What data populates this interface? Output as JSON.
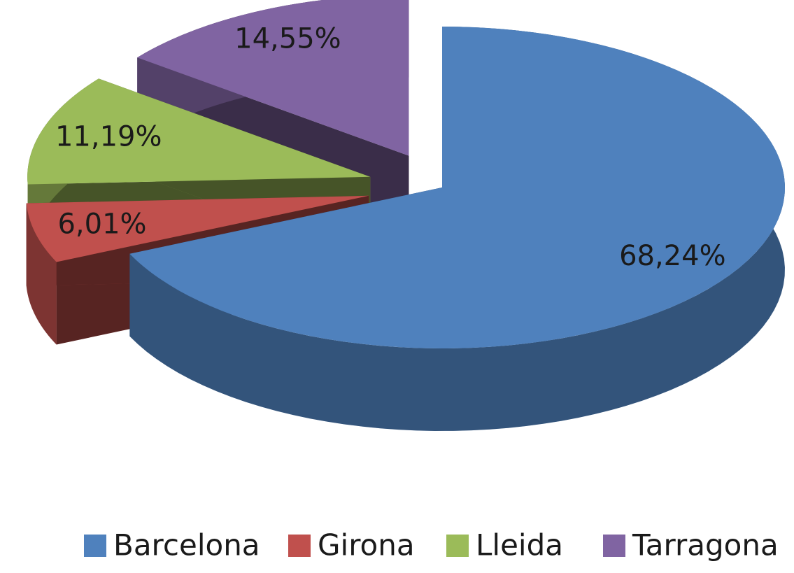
{
  "chart_data": {
    "type": "pie3d",
    "categories": [
      "Barcelona",
      "Girona",
      "Lleida",
      "Tarragona"
    ],
    "values": [
      68.24,
      6.01,
      11.19,
      14.55
    ],
    "value_labels": [
      "68,24%",
      "6,01%",
      "11,19%",
      "14,55%"
    ],
    "colors": [
      "#4f81bd",
      "#c0504d",
      "#9bbb59",
      "#8064a2"
    ],
    "legend": "bottom"
  }
}
